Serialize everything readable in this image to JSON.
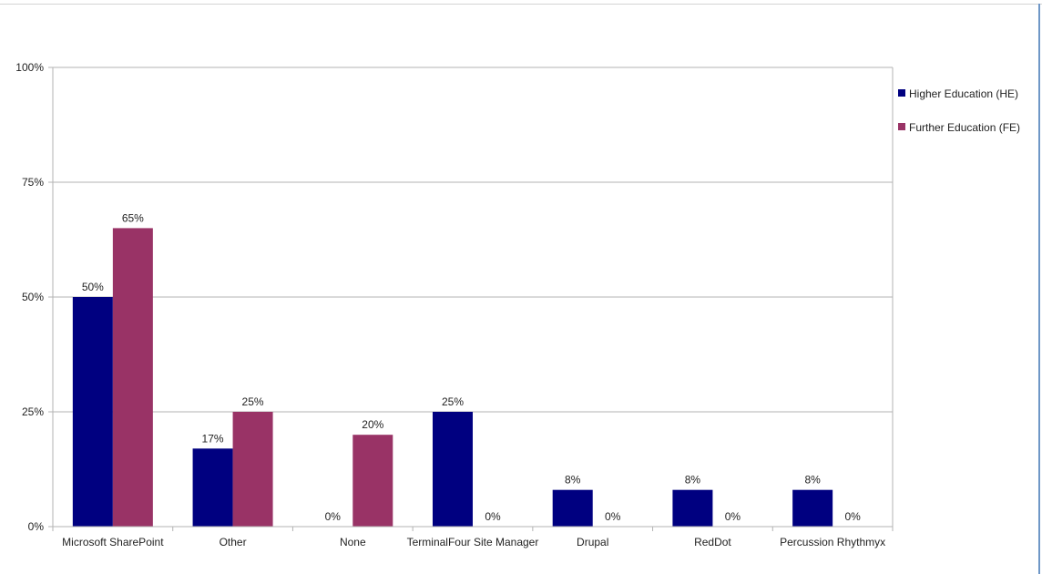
{
  "chart_data": {
    "type": "bar",
    "title": "",
    "xlabel": "",
    "ylabel": "",
    "ylim": [
      0,
      100
    ],
    "yticks": [
      0,
      25,
      50,
      75,
      100
    ],
    "ytick_labels": [
      "0%",
      "25%",
      "50%",
      "75%",
      "100%"
    ],
    "grid": true,
    "legend_position": "right",
    "categories": [
      "Microsoft SharePoint",
      "Other",
      "None",
      "TerminalFour Site Manager",
      "Drupal",
      "RedDot",
      "Percussion Rhythmyx"
    ],
    "series": [
      {
        "name": "Higher Education (HE)",
        "color": "#000080",
        "values": [
          50,
          17,
          0,
          25,
          8,
          8,
          8
        ],
        "labels": [
          "50%",
          "17%",
          "0%",
          "25%",
          "8%",
          "8%",
          "8%"
        ]
      },
      {
        "name": "Further Education (FE)",
        "color": "#993366",
        "values": [
          65,
          25,
          20,
          0,
          0,
          0,
          0
        ],
        "labels": [
          "65%",
          "25%",
          "20%",
          "0%",
          "0%",
          "0%",
          "0%"
        ]
      }
    ]
  }
}
